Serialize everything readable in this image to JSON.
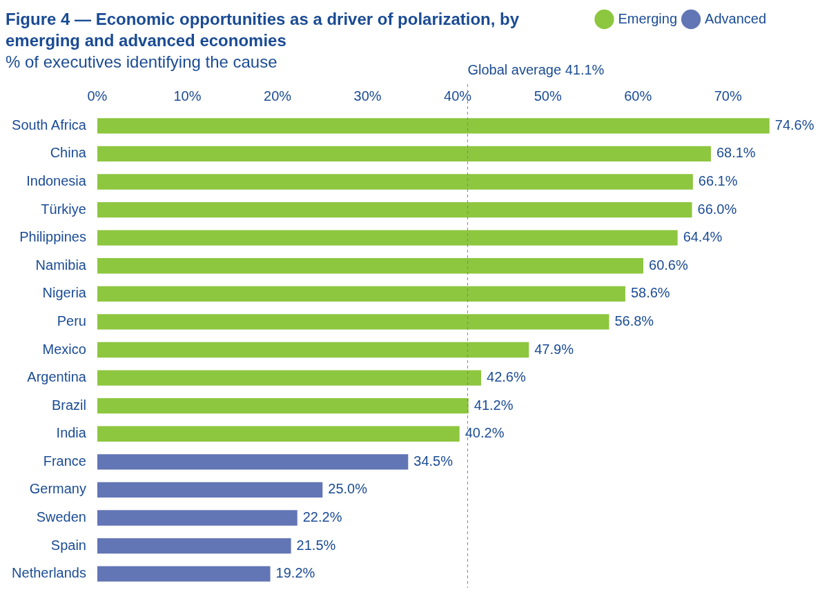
{
  "chart_data": {
    "type": "bar",
    "orientation": "horizontal",
    "title": "Figure 4 — Economic opportunities as a driver of polarization, by emerging and advanced economies",
    "subtitle": "% of executives identifying the cause",
    "categories": [
      "South Africa",
      "China",
      "Indonesia",
      "Türkiye",
      "Philippines",
      "Namibia",
      "Nigeria",
      "Peru",
      "Mexico",
      "Argentina",
      "Brazil",
      "India",
      "France",
      "Germany",
      "Sweden",
      "Spain",
      "Netherlands"
    ],
    "series": [
      {
        "name": "Emerging",
        "color": "#8dc63f",
        "values": [
          74.6,
          68.1,
          66.1,
          66.0,
          64.4,
          60.6,
          58.6,
          56.8,
          47.9,
          42.6,
          41.2,
          40.2,
          null,
          null,
          null,
          null,
          null
        ],
        "value_labels": [
          "74.6%",
          "68.1%",
          "66.1%",
          "66.0%",
          "64.4%",
          "60.6%",
          "58.6%",
          "56.8%",
          "47.9%",
          "42.6%",
          "41.2%",
          "40.2%",
          null,
          null,
          null,
          null,
          null
        ]
      },
      {
        "name": "Advanced",
        "color": "#6275b5",
        "values": [
          null,
          null,
          null,
          null,
          null,
          null,
          null,
          null,
          null,
          null,
          null,
          null,
          34.5,
          25.0,
          22.2,
          21.5,
          19.2
        ],
        "value_labels": [
          null,
          null,
          null,
          null,
          null,
          null,
          null,
          null,
          null,
          null,
          null,
          null,
          "34.5%",
          "25.0%",
          "22.2%",
          "21.5%",
          "19.2%"
        ]
      }
    ],
    "xlim": [
      0,
      75
    ],
    "xticks": [
      {
        "value": 0,
        "label": "0%"
      },
      {
        "value": 10,
        "label": "10%"
      },
      {
        "value": 20,
        "label": "20%"
      },
      {
        "value": 30,
        "label": "30%"
      },
      {
        "value": 40,
        "label": "40%"
      },
      {
        "value": 50,
        "label": "50%"
      },
      {
        "value": 60,
        "label": "60%"
      },
      {
        "value": 70,
        "label": "70%"
      }
    ],
    "ref_lines": [
      {
        "axis": "x",
        "value": 41.1,
        "label": "Global average 41.1%",
        "color": "#6b86b0",
        "line_style": "dashed"
      }
    ],
    "grid": false,
    "legend": "top right"
  }
}
